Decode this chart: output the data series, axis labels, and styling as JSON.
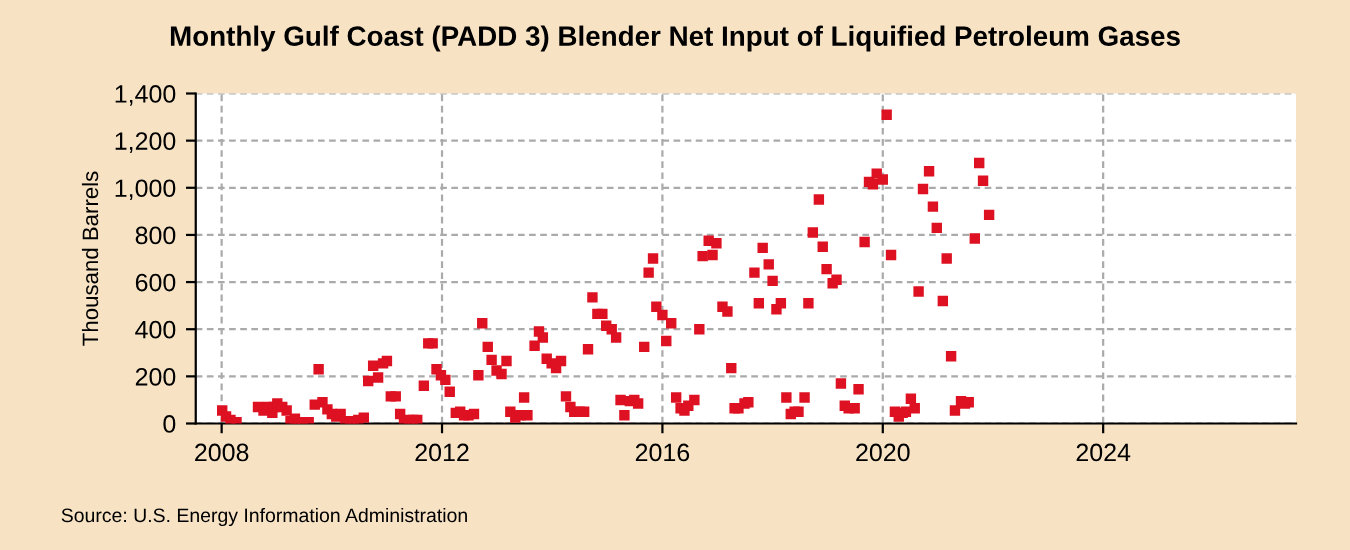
{
  "chart_data": {
    "type": "scatter",
    "title": "Monthly Gulf Coast (PADD 3) Blender Net Input of Liquified Petroleum Gases",
    "ylabel": "Thousand Barrels",
    "annotations": [
      "Source: U.S. Energy Information Administration"
    ],
    "x": [
      2008.01,
      2008.08,
      2008.16,
      2008.27,
      2008.66,
      2008.76,
      2008.84,
      2008.92,
      2008.95,
      2009.01,
      2009.1,
      2009.18,
      2009.25,
      2009.33,
      2009.4,
      2009.47,
      2009.58,
      2009.69,
      2009.76,
      2009.83,
      2009.92,
      2010.0,
      2010.08,
      2010.16,
      2010.24,
      2010.33,
      2010.4,
      2010.48,
      2010.58,
      2010.66,
      2010.75,
      2010.84,
      2010.93,
      2011.0,
      2011.07,
      2011.16,
      2011.24,
      2011.31,
      2011.4,
      2011.48,
      2011.55,
      2011.67,
      2011.75,
      2011.83,
      2011.9,
      2011.98,
      2012.06,
      2012.14,
      2012.25,
      2012.33,
      2012.4,
      2012.48,
      2012.58,
      2012.66,
      2012.73,
      2012.83,
      2012.9,
      2012.99,
      2013.08,
      2013.17,
      2013.24,
      2013.33,
      2013.42,
      2013.49,
      2013.55,
      2013.68,
      2013.76,
      2013.83,
      2013.9,
      2013.99,
      2014.07,
      2014.16,
      2014.25,
      2014.33,
      2014.4,
      2014.5,
      2014.58,
      2014.65,
      2014.73,
      2014.82,
      2014.91,
      2014.98,
      2015.08,
      2015.16,
      2015.24,
      2015.31,
      2015.41,
      2015.49,
      2015.56,
      2015.67,
      2015.75,
      2015.83,
      2015.89,
      2016.0,
      2016.07,
      2016.16,
      2016.25,
      2016.33,
      2016.4,
      2016.47,
      2016.58,
      2016.67,
      2016.73,
      2016.84,
      2016.91,
      2016.98,
      2017.09,
      2017.18,
      2017.25,
      2017.31,
      2017.38,
      2017.49,
      2017.56,
      2017.67,
      2017.75,
      2017.82,
      2017.93,
      2018.0,
      2018.07,
      2018.15,
      2018.25,
      2018.33,
      2018.4,
      2018.47,
      2018.58,
      2018.65,
      2018.73,
      2018.84,
      2018.91,
      2018.98,
      2019.09,
      2019.16,
      2019.24,
      2019.31,
      2019.38,
      2019.49,
      2019.56,
      2019.67,
      2019.75,
      2019.82,
      2019.89,
      2020.0,
      2020.07,
      2020.15,
      2020.22,
      2020.29,
      2020.36,
      2020.42,
      2020.51,
      2020.58,
      2020.65,
      2020.73,
      2020.84,
      2020.91,
      2020.98,
      2021.09,
      2021.16,
      2021.24,
      2021.31,
      2021.42,
      2021.49,
      2021.56,
      2021.67,
      2021.75,
      2021.82,
      2021.93
    ],
    "series": [
      {
        "color": "#dd1122",
        "values": [
          55,
          30,
          15,
          5,
          70,
          55,
          70,
          45,
          70,
          85,
          70,
          55,
          10,
          20,
          5,
          5,
          5,
          80,
          230,
          90,
          60,
          40,
          30,
          40,
          10,
          10,
          10,
          15,
          25,
          180,
          245,
          195,
          255,
          265,
          115,
          115,
          40,
          5,
          15,
          15,
          15,
          160,
          340,
          340,
          230,
          205,
          185,
          135,
          45,
          50,
          35,
          35,
          40,
          205,
          425,
          325,
          270,
          225,
          210,
          265,
          50,
          25,
          35,
          110,
          35,
          330,
          390,
          365,
          275,
          255,
          235,
          265,
          115,
          70,
          50,
          50,
          50,
          315,
          535,
          465,
          465,
          415,
          400,
          365,
          100,
          35,
          95,
          100,
          85,
          325,
          640,
          700,
          495,
          460,
          350,
          425,
          110,
          65,
          55,
          75,
          100,
          400,
          710,
          775,
          715,
          765,
          495,
          475,
          235,
          65,
          65,
          85,
          90,
          640,
          510,
          745,
          675,
          605,
          485,
          510,
          110,
          40,
          50,
          50,
          110,
          510,
          810,
          950,
          750,
          655,
          595,
          610,
          170,
          75,
          65,
          65,
          145,
          770,
          1025,
          1015,
          1060,
          1035,
          1310,
          715,
          50,
          30,
          45,
          50,
          105,
          65,
          560,
          995,
          1070,
          920,
          830,
          520,
          700,
          285,
          55,
          95,
          85,
          90,
          785,
          1105,
          1030,
          885
        ]
      }
    ],
    "xlim": [
      2007.53,
      2027.5
    ],
    "xticks": [
      2008,
      2012,
      2016,
      2020,
      2024
    ],
    "ylim": [
      0,
      1400
    ],
    "yticks": [
      {
        "value": 0,
        "label": "0"
      },
      {
        "value": 200,
        "label": "200"
      },
      {
        "value": 400,
        "label": "400"
      },
      {
        "value": 600,
        "label": "600"
      },
      {
        "value": 800,
        "label": "800"
      },
      {
        "value": 1000,
        "label": "1,000"
      },
      {
        "value": 1200,
        "label": "1,200"
      },
      {
        "value": 1400,
        "label": "1,400"
      }
    ],
    "grid": true,
    "marker": "square"
  }
}
